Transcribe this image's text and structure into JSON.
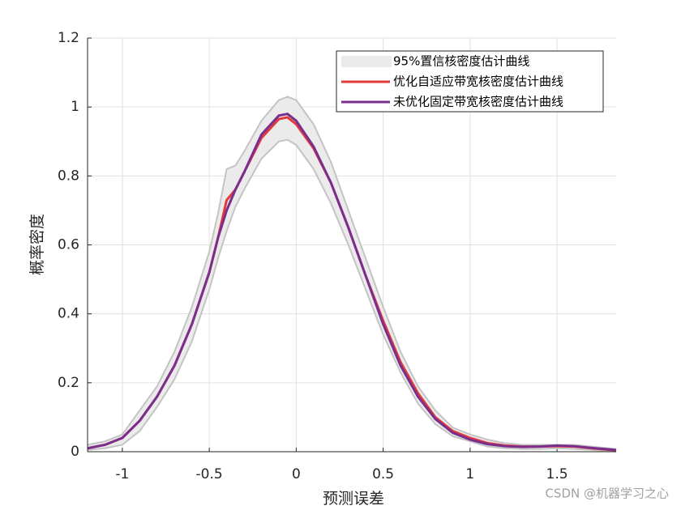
{
  "chart_data": {
    "type": "line",
    "x_label": "预测误差",
    "y_label": "概率密度",
    "watermark": "CSDN @机器学习之心",
    "x": [
      -1.2,
      -1.1,
      -1.0,
      -0.9,
      -0.8,
      -0.7,
      -0.6,
      -0.5,
      -0.45,
      -0.4,
      -0.35,
      -0.3,
      -0.2,
      -0.1,
      -0.05,
      0,
      0.1,
      0.2,
      0.3,
      0.4,
      0.5,
      0.6,
      0.7,
      0.8,
      0.9,
      1.0,
      1.1,
      1.2,
      1.3,
      1.4,
      1.5,
      1.6,
      1.7,
      1.84
    ],
    "band": {
      "name": "95%置信核密度估计曲线",
      "color": "#ebebeb",
      "edge_color": "#c4c4c4",
      "upper": [
        0.02,
        0.03,
        0.05,
        0.12,
        0.19,
        0.29,
        0.42,
        0.58,
        0.69,
        0.82,
        0.83,
        0.87,
        0.96,
        1.02,
        1.03,
        1.02,
        0.95,
        0.84,
        0.7,
        0.56,
        0.42,
        0.29,
        0.19,
        0.12,
        0.07,
        0.05,
        0.035,
        0.025,
        0.02,
        0.02,
        0.02,
        0.02,
        0.015,
        0.008
      ],
      "lower": [
        0.005,
        0.01,
        0.02,
        0.06,
        0.13,
        0.21,
        0.32,
        0.47,
        0.56,
        0.64,
        0.71,
        0.76,
        0.85,
        0.9,
        0.905,
        0.89,
        0.82,
        0.72,
        0.6,
        0.47,
        0.34,
        0.23,
        0.14,
        0.08,
        0.045,
        0.03,
        0.015,
        0.01,
        0.008,
        0.008,
        0.01,
        0.008,
        0.005,
        0.001
      ]
    },
    "series": [
      {
        "name": "优化自适应带宽核密度估计曲线",
        "color": "#e03a3a",
        "values": [
          0.01,
          0.02,
          0.04,
          0.09,
          0.16,
          0.25,
          0.37,
          0.52,
          0.62,
          0.73,
          0.76,
          0.81,
          0.91,
          0.965,
          0.97,
          0.95,
          0.88,
          0.78,
          0.65,
          0.51,
          0.38,
          0.26,
          0.17,
          0.1,
          0.06,
          0.04,
          0.025,
          0.018,
          0.015,
          0.015,
          0.016,
          0.015,
          0.01,
          0.004
        ]
      },
      {
        "name": "未优化固定带宽核密度估计曲线",
        "color": "#7a2e8e",
        "values": [
          0.01,
          0.02,
          0.04,
          0.09,
          0.16,
          0.25,
          0.37,
          0.52,
          0.62,
          0.7,
          0.76,
          0.81,
          0.92,
          0.975,
          0.98,
          0.96,
          0.885,
          0.78,
          0.65,
          0.51,
          0.37,
          0.25,
          0.16,
          0.095,
          0.055,
          0.035,
          0.022,
          0.016,
          0.014,
          0.015,
          0.018,
          0.016,
          0.011,
          0.005
        ]
      }
    ],
    "xlim": [
      -1.2,
      1.84
    ],
    "ylim": [
      0,
      1.2
    ],
    "xticks": [
      -1,
      -0.5,
      0,
      0.5,
      1,
      1.5
    ],
    "yticks": [
      0,
      0.2,
      0.4,
      0.6,
      0.8,
      1,
      1.2
    ],
    "grid": true,
    "legend": "upper-right"
  }
}
